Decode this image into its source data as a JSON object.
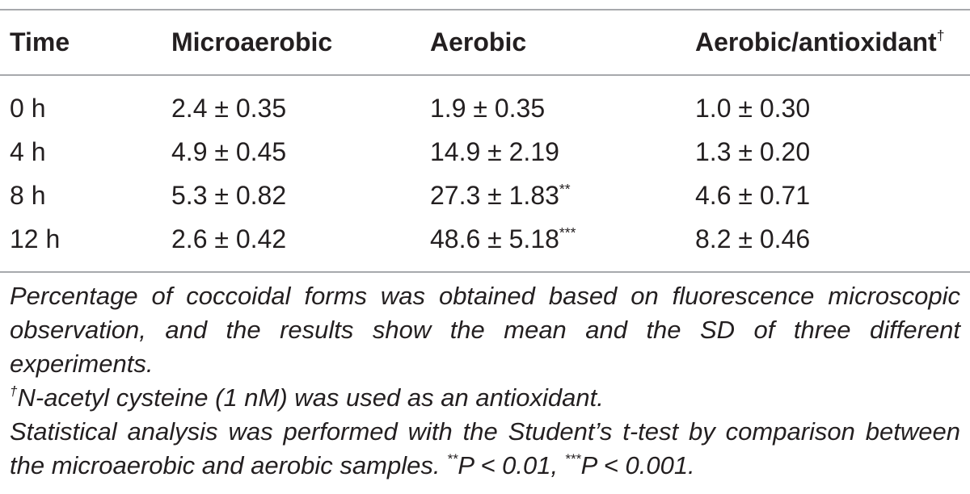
{
  "table": {
    "headers": {
      "time": "Time",
      "microaerobic": "Microaerobic",
      "aerobic": "Aerobic",
      "aerobic_antioxidant": "Aerobic/antioxidant",
      "aerobic_antioxidant_mark": "†"
    },
    "rows": [
      {
        "time": "0 h",
        "microaerobic": "2.4 ± 0.35",
        "aerobic": "1.9 ± 0.35",
        "aerobic_sig": "",
        "aerobic_antioxidant": "1.0 ± 0.30"
      },
      {
        "time": "4 h",
        "microaerobic": "4.9 ± 0.45",
        "aerobic": "14.9 ± 2.19",
        "aerobic_sig": "",
        "aerobic_antioxidant": "1.3 ± 0.20"
      },
      {
        "time": "8 h",
        "microaerobic": "5.3 ± 0.82",
        "aerobic": "27.3 ± 1.83",
        "aerobic_sig": "**",
        "aerobic_antioxidant": "4.6 ± 0.71"
      },
      {
        "time": "12 h",
        "microaerobic": "2.6 ± 0.42",
        "aerobic": "48.6 ± 5.18",
        "aerobic_sig": "***",
        "aerobic_antioxidant": "8.2 ± 0.46"
      }
    ]
  },
  "footnotes": {
    "note1": "Percentage of coccoidal forms was obtained based on fluorescence microscopic observation, and the results show the mean and the SD of three different experiments.",
    "note2_mark": "†",
    "note2": "N-acetyl cysteine (1 nM) was used as an antioxidant.",
    "note3_a": "Statistical analysis was performed with the Student’s t-test by comparison between the microaerobic and aerobic samples. ",
    "note3_mark1": "**",
    "note3_b": "P < 0.01, ",
    "note3_mark2": "***",
    "note3_c": "P < 0.001."
  }
}
